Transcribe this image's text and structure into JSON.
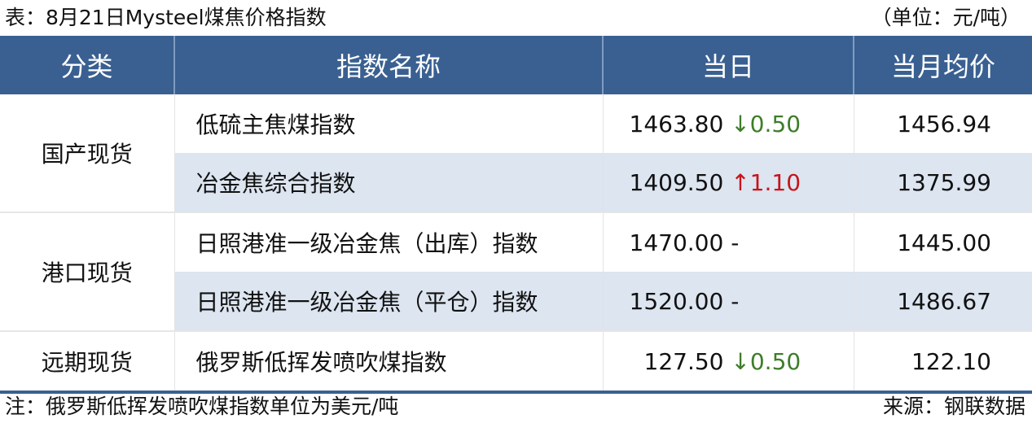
{
  "title": "表：8月21日Mysteel煤焦价格指数",
  "unit": "（单位：元/吨）",
  "columns": [
    "分类",
    "指数名称",
    "当日",
    "当月均价"
  ],
  "colors": {
    "header": "#3a6091",
    "alt_row": "#dce5f0",
    "down": "#3e7d2a",
    "up": "#c8141b"
  },
  "rows": [
    {
      "category": "国产现货",
      "name": "低硫主焦煤指数",
      "value": "1463.80",
      "dir": "↓",
      "change": "0.50",
      "avg": "1456.94"
    },
    {
      "category": "",
      "name": "冶金焦综合指数",
      "value": "1409.50",
      "dir": "↑",
      "change": "1.10",
      "avg": "1375.99"
    },
    {
      "category": "港口现货",
      "name": "日照港准一级冶金焦（出库）指数",
      "value": "1470.00",
      "dir": "",
      "change": "-",
      "avg": "1445.00"
    },
    {
      "category": "",
      "name": "日照港准一级冶金焦（平仓）指数",
      "value": "1520.00",
      "dir": "",
      "change": "-",
      "avg": "1486.67"
    },
    {
      "category": "远期现货",
      "name": "俄罗斯低挥发喷吹煤指数",
      "value": "127.50",
      "dir": "↓",
      "change": "0.50",
      "avg": "122.10"
    }
  ],
  "note": "注：俄罗斯低挥发喷吹煤指数单位为美元/吨",
  "source": "来源：钢联数据"
}
